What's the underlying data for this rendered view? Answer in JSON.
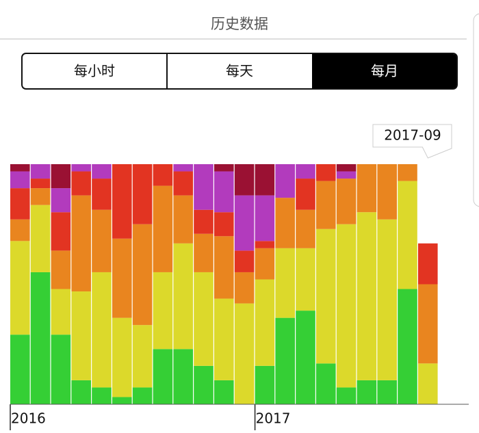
{
  "header": {
    "title": "历史数据"
  },
  "tabs": [
    "每小时",
    "每天",
    "每月"
  ],
  "chart_data": {
    "type": "stacked_bar",
    "annotation": "2017-09",
    "categories": [
      "2016",
      null,
      null,
      null,
      null,
      null,
      null,
      null,
      null,
      null,
      null,
      null,
      "2017",
      null,
      null,
      null,
      null,
      null,
      null,
      null,
      null
    ],
    "ylim": [
      0,
      100
    ],
    "series": [
      {
        "color": "#35cf35",
        "values": [
          29,
          55,
          29,
          10,
          7,
          3,
          7,
          23,
          23,
          16,
          10,
          0,
          16,
          36,
          39,
          17,
          7,
          10,
          10,
          48,
          0
        ]
      },
      {
        "color": "#dcd92b",
        "values": [
          39,
          28,
          19,
          37,
          48,
          33,
          26,
          32,
          44,
          39,
          34,
          42,
          36,
          29,
          26,
          56,
          68,
          70,
          67,
          45,
          17
        ]
      },
      {
        "color": "#e9851f",
        "values": [
          9,
          7,
          16,
          40,
          26,
          33,
          42,
          36,
          20,
          16,
          26,
          13,
          13,
          21,
          16,
          20,
          19,
          20,
          23,
          7,
          33
        ]
      },
      {
        "color": "#e23422",
        "values": [
          13,
          4,
          16,
          10,
          13,
          31,
          25,
          9,
          10,
          10,
          10,
          9,
          3,
          0,
          13,
          7,
          0,
          0,
          0,
          0,
          17
        ]
      },
      {
        "color": "#b23bbd",
        "values": [
          7,
          6,
          10,
          3,
          6,
          0,
          0,
          0,
          3,
          19,
          17,
          23,
          19,
          14,
          6,
          0,
          3,
          0,
          0,
          0,
          0
        ]
      },
      {
        "color": "#9a1133",
        "values": [
          3,
          0,
          10,
          0,
          0,
          0,
          0,
          0,
          0,
          0,
          3,
          13,
          13,
          0,
          0,
          0,
          3,
          0,
          0,
          0,
          0
        ]
      }
    ]
  }
}
